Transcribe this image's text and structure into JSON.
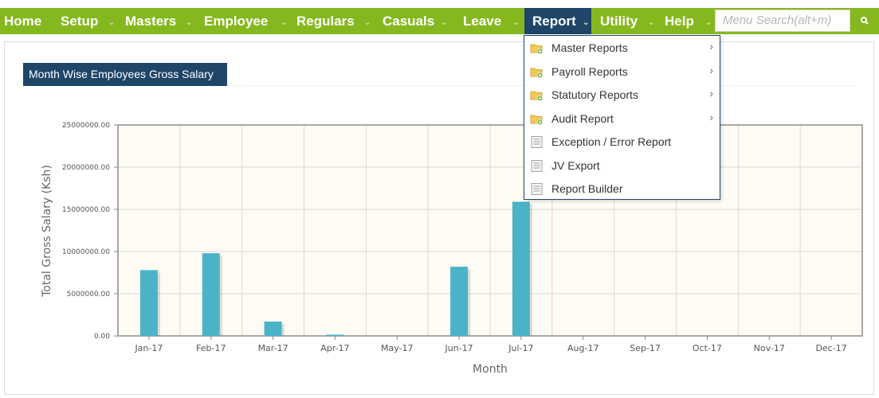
{
  "nav": {
    "items": [
      {
        "label": "Home",
        "caret": false
      },
      {
        "label": "Setup",
        "caret": true
      },
      {
        "label": "Masters",
        "caret": true
      },
      {
        "label": "Employee",
        "caret": true
      },
      {
        "label": "Regulars",
        "caret": true
      },
      {
        "label": "Casuals",
        "caret": true
      },
      {
        "label": "Leave",
        "caret": true
      },
      {
        "label": "Report",
        "caret": true,
        "active": true
      },
      {
        "label": "Utility",
        "caret": true
      },
      {
        "label": "Help",
        "caret": true
      }
    ],
    "caret_glyph": "⌄",
    "search": {
      "placeholder": "Menu Search(alt+m)",
      "icon": "search-icon"
    }
  },
  "report_menu": {
    "items": [
      {
        "label": "Master Reports",
        "icon": "folder-add-icon",
        "submenu": true
      },
      {
        "label": "Payroll Reports",
        "icon": "folder-add-icon",
        "submenu": true
      },
      {
        "label": "Statutory Reports",
        "icon": "folder-add-icon",
        "submenu": true
      },
      {
        "label": "Audit Report",
        "icon": "folder-add-icon",
        "submenu": true
      },
      {
        "label": "Exception / Error Report",
        "icon": "document-icon",
        "submenu": false
      },
      {
        "label": "JV Export",
        "icon": "document-icon",
        "submenu": false
      },
      {
        "label": "Report Builder",
        "icon": "document-icon",
        "submenu": false
      }
    ],
    "submenu_glyph": "›"
  },
  "widget": {
    "title": "Month Wise Employees Gross Salary"
  },
  "colors": {
    "nav_green": "#85b81f",
    "nav_active": "#1f4569",
    "bar": "#4bb3c8",
    "plot_bg": "#fdfbf3"
  },
  "chart_data": {
    "type": "bar",
    "categories": [
      "Jan-17",
      "Feb-17",
      "Mar-17",
      "Apr-17",
      "May-17",
      "Jun-17",
      "Jul-17",
      "Aug-17",
      "Sep-17",
      "Oct-17",
      "Nov-17",
      "Dec-17"
    ],
    "values": [
      7800000,
      9800000,
      1700000,
      150000,
      0,
      8200000,
      15900000,
      0,
      0,
      0,
      0,
      0
    ],
    "xlabel": "Month",
    "ylabel": "Total Gross Salary (Ksh)",
    "ylim": [
      0,
      25000000
    ],
    "yticks": [
      "0.00",
      "5000000.00",
      "10000000.00",
      "15000000.00",
      "20000000.00",
      "25000000.00"
    ],
    "grid": true,
    "legend": "none"
  }
}
